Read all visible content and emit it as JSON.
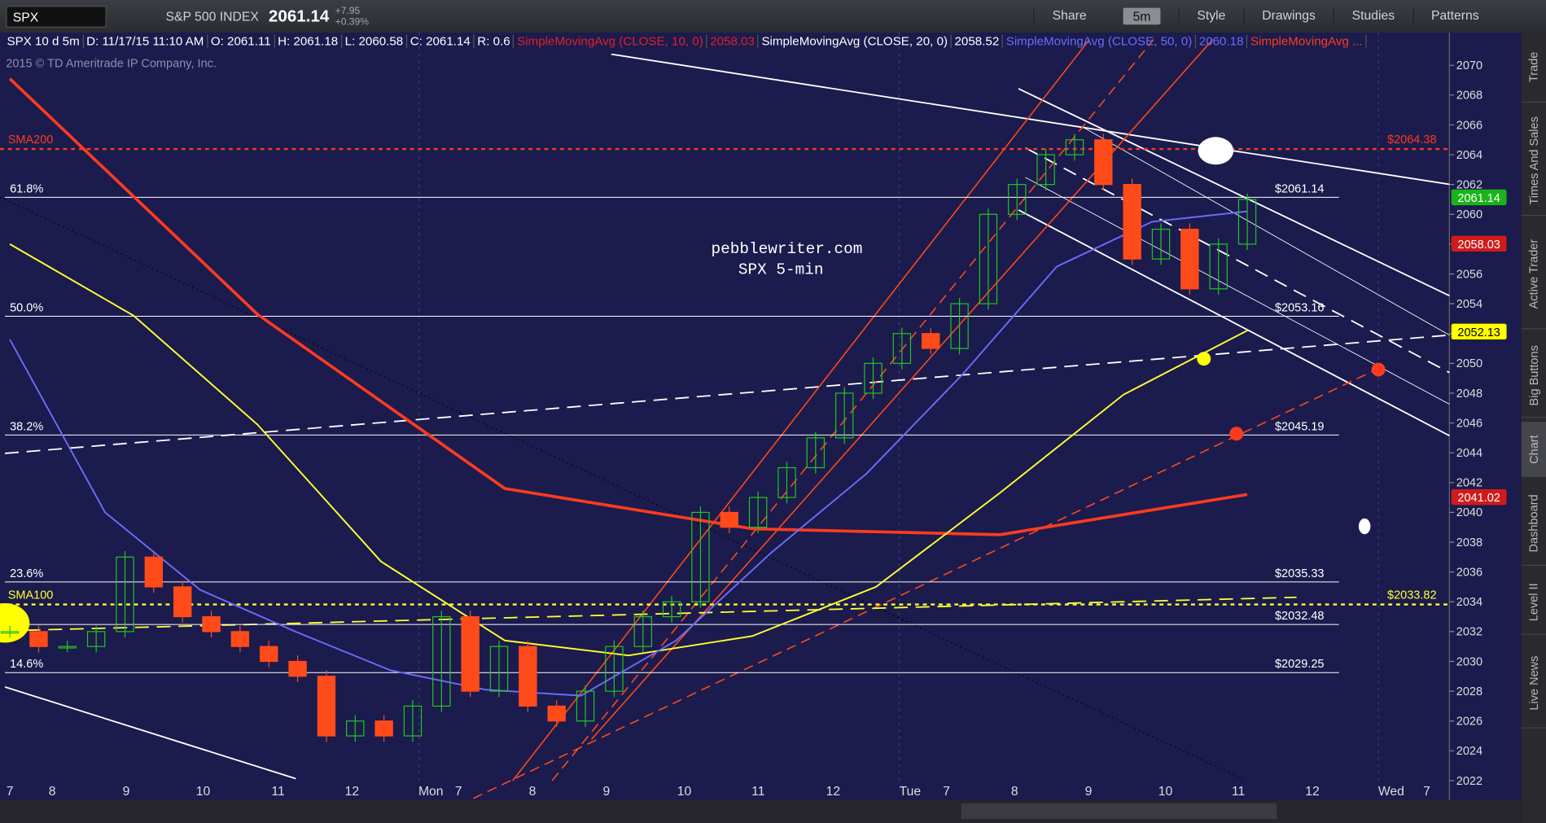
{
  "toolbar": {
    "symbol": "SPX",
    "description": "S&P 500 INDEX",
    "last": "2061.14",
    "change": "+7.95",
    "change_pct": "+0.39%",
    "buttons": [
      "Share",
      "5m",
      "Style",
      "Drawings",
      "Studies",
      "Patterns"
    ]
  },
  "info_bar": [
    {
      "text": "SPX 10 d 5m",
      "color": "#ffffff"
    },
    {
      "text": "D: 11/17/15 11:10 AM",
      "color": "#ffffff"
    },
    {
      "text": "O: 2061.11",
      "color": "#ffffff"
    },
    {
      "text": "H: 2061.18",
      "color": "#ffffff"
    },
    {
      "text": "L: 2060.58",
      "color": "#ffffff"
    },
    {
      "text": "C: 2061.14",
      "color": "#ffffff"
    },
    {
      "text": "R: 0.6",
      "color": "#ffffff"
    },
    {
      "text": "SimpleMovingAvg (CLOSE, 10, 0)",
      "color": "#e0202a"
    },
    {
      "text": "2058.03",
      "color": "#e0202a"
    },
    {
      "text": "SimpleMovingAvg (CLOSE, 20, 0)",
      "color": "#ffffff"
    },
    {
      "text": "2058.52",
      "color": "#ffffff"
    },
    {
      "text": "SimpleMovingAvg (CLOSE, 50, 0)",
      "color": "#6b6bff"
    },
    {
      "text": "2060.18",
      "color": "#6b6bff"
    },
    {
      "text": "SimpleMovingAvg ...",
      "color": "#ff3b1f"
    }
  ],
  "copyright": "2015 © TD Ameritrade IP Company, Inc.",
  "watermark": [
    "pebblewriter.com",
    "SPX 5-min"
  ],
  "side_tabs": [
    "Trade",
    "Times And Sales",
    "Active Trader",
    "Big Buttons",
    "Chart",
    "Dashboard",
    "Level II",
    "Live News"
  ],
  "chart_data": {
    "type": "candlestick",
    "x_labels": [
      "7",
      "8",
      "9",
      "10",
      "11",
      "12",
      "Mon",
      "7",
      "8",
      "9",
      "10",
      "11",
      "12",
      "Tue",
      "7",
      "8",
      "9",
      "10",
      "11",
      "12",
      "Wed",
      "7"
    ],
    "ylim": [
      2022,
      2072
    ],
    "yticks": [
      2022,
      2024,
      2026,
      2028,
      2030,
      2032,
      2034,
      2036,
      2038,
      2040,
      2042,
      2044,
      2046,
      2048,
      2050,
      2052,
      2054,
      2056,
      2058,
      2060,
      2062,
      2064,
      2066,
      2068,
      2070
    ],
    "values": [
      2032,
      2031,
      2031,
      2032,
      2037,
      2035,
      2033,
      2032,
      2031,
      2030,
      2029,
      2025,
      2026,
      2025,
      2027,
      2033,
      2028,
      2031,
      2027,
      2026,
      2028,
      2031,
      2033,
      2034,
      2040,
      2039,
      2041,
      2043,
      2045,
      2048,
      2050,
      2052,
      2051,
      2054,
      2060,
      2062,
      2064,
      2065,
      2062,
      2057,
      2059,
      2055,
      2058,
      2061
    ],
    "up_color": "#22c422",
    "down_color": "#ff4a1a",
    "series": [
      {
        "color": "#ff3b1f",
        "values": [
          2069.1,
          2053.3,
          2041.6,
          2038.9,
          2038.5,
          2041.2
        ]
      },
      {
        "color": "#ffff33",
        "values": [
          2058,
          2053.2,
          2045.9,
          2036.7,
          2031.4,
          2030.4,
          2031.7,
          2035,
          2041.3,
          2047.9,
          2052.2
        ]
      },
      {
        "color": "#6b6bff",
        "values": [
          2051.6,
          2040,
          2034.8,
          2032,
          2029.4,
          2028.1,
          2027.7,
          2031.4,
          2037.3,
          2042.6,
          2049.2,
          2056.5,
          2059.5,
          2060.2
        ]
      }
    ],
    "levels": [
      {
        "label": "61.8%",
        "value": 2061.14,
        "price_label": "$2061.14"
      },
      {
        "label": "50.0%",
        "value": 2053.16,
        "price_label": "$2053.16"
      },
      {
        "label": "38.2%",
        "value": 2045.19,
        "price_label": "$2045.19"
      },
      {
        "label": "23.6%",
        "value": 2035.33,
        "price_label": "$2035.33"
      },
      {
        "value": 2032.48,
        "price_label": "$2032.48"
      },
      {
        "label": "14.6%",
        "value": 2029.25,
        "price_label": "$2029.25"
      }
    ],
    "sma_levels": [
      {
        "label": "SMA200",
        "value": 2064.38,
        "price_label": "$2064.38",
        "color": "#ff3b1f"
      },
      {
        "label": "SMA100",
        "value": 2033.82,
        "price_label": "$2033.82",
        "color": "#ffff33"
      }
    ],
    "badges": [
      {
        "value": 2061.14,
        "color": "#19b419",
        "text_color": "#ffffff"
      },
      {
        "value": 2058.03,
        "color": "#d01b1b",
        "text_color": "#ffffff"
      },
      {
        "value": 2052.13,
        "color": "#ffff00",
        "text_color": "#000000"
      },
      {
        "value": 2041.02,
        "color": "#d01b1b",
        "text_color": "#ffffff"
      }
    ]
  }
}
